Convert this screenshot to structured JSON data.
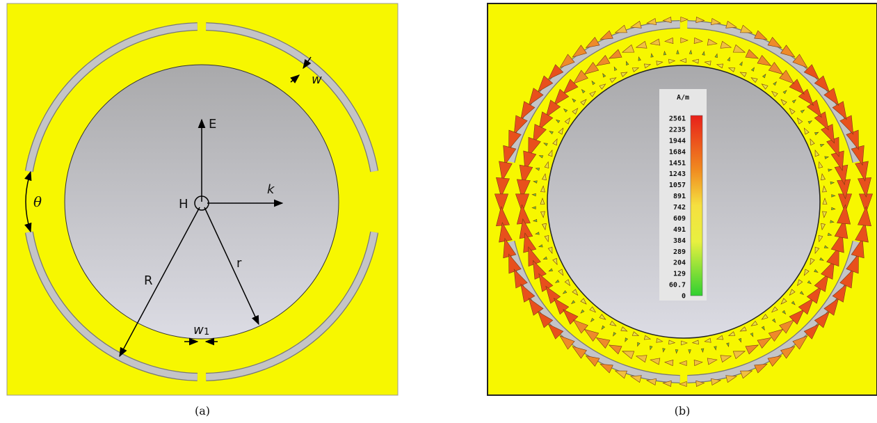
{
  "panel_a": {
    "labels": {
      "w": "w",
      "E": "E",
      "k": "k",
      "H": "H",
      "theta": "θ",
      "R": "R",
      "r": "r",
      "w1": "w",
      "w1_sub": "1"
    },
    "caption": "(a)"
  },
  "panel_b": {
    "colorbar": {
      "unit": "A/m",
      "ticks": [
        "2561",
        "2235",
        "1944",
        "1684",
        "1451",
        "1243",
        "1057",
        "891",
        "742",
        "609",
        "491",
        "384",
        "289",
        "204",
        "129",
        "60.7",
        "0"
      ]
    },
    "caption": "(b)"
  }
}
